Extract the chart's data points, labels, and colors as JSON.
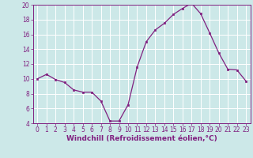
{
  "x": [
    0,
    1,
    2,
    3,
    4,
    5,
    6,
    7,
    8,
    9,
    10,
    11,
    12,
    13,
    14,
    15,
    16,
    17,
    18,
    19,
    20,
    21,
    22,
    23
  ],
  "y": [
    10.0,
    10.6,
    9.9,
    9.5,
    8.5,
    8.2,
    8.2,
    7.0,
    4.3,
    4.3,
    6.5,
    11.6,
    15.0,
    16.6,
    17.5,
    18.7,
    19.5,
    20.2,
    18.8,
    16.2,
    13.5,
    11.3,
    11.2,
    9.7
  ],
  "line_color": "#802080",
  "marker": "s",
  "marker_size": 2.0,
  "bg_color": "#cce8e8",
  "grid_color": "#ffffff",
  "xlabel": "Windchill (Refroidissement éolien,°C)",
  "xlabel_color": "#802080",
  "tick_color": "#802080",
  "spine_color": "#802080",
  "ylim": [
    4,
    20
  ],
  "xlim": [
    -0.5,
    23.5
  ],
  "yticks": [
    4,
    6,
    8,
    10,
    12,
    14,
    16,
    18,
    20
  ],
  "xticks": [
    0,
    1,
    2,
    3,
    4,
    5,
    6,
    7,
    8,
    9,
    10,
    11,
    12,
    13,
    14,
    15,
    16,
    17,
    18,
    19,
    20,
    21,
    22,
    23
  ],
  "tick_fontsize": 5.5,
  "xlabel_fontsize": 6.5
}
